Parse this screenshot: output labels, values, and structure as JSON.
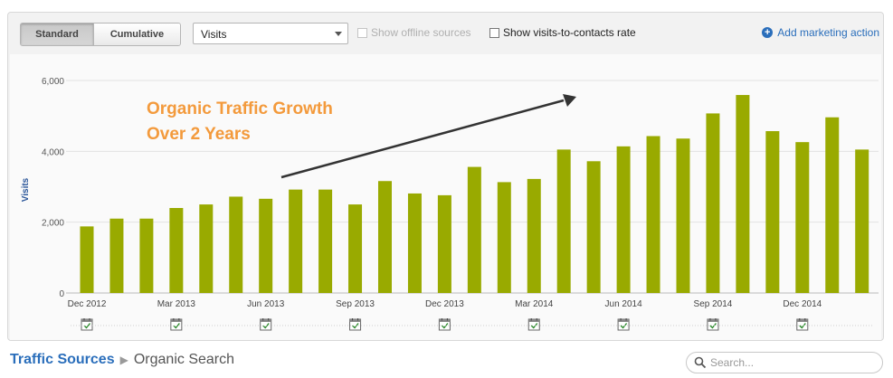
{
  "toolbar": {
    "view_standard": "Standard",
    "view_cumulative": "Cumulative",
    "metric_select": "Visits",
    "offline_sources_label": "Show offline sources",
    "offline_sources_checked": false,
    "visits_contacts_label": "Show visits-to-contacts rate",
    "visits_contacts_checked": false,
    "add_marketing_action": "Add marketing action"
  },
  "annotation": {
    "line1": "Organic Traffic Growth",
    "line2": "Over 2 Years"
  },
  "chart_data": {
    "type": "bar",
    "ylabel": "Visits",
    "ylim": [
      0,
      6000
    ],
    "yticks": [
      "0",
      "2,000",
      "4,000",
      "6,000"
    ],
    "grid": true,
    "bar_color": "#99aa00",
    "categories": [
      "Dec 2012",
      "Jan 2013",
      "Feb 2013",
      "Mar 2013",
      "Apr 2013",
      "May 2013",
      "Jun 2013",
      "Jul 2013",
      "Aug 2013",
      "Sep 2013",
      "Oct 2013",
      "Nov 2013",
      "Dec 2013",
      "Jan 2014",
      "Feb 2014",
      "Mar 2014",
      "Apr 2014",
      "May 2014",
      "Jun 2014",
      "Jul 2014",
      "Aug 2014",
      "Sep 2014",
      "Oct 2014",
      "Nov 2014",
      "Dec 2014",
      "Jan 2015",
      "Feb 2015"
    ],
    "values": [
      1880,
      2100,
      2100,
      2400,
      2500,
      2720,
      2660,
      2920,
      2920,
      2500,
      3160,
      2810,
      2760,
      3560,
      3130,
      3220,
      4050,
      3720,
      4140,
      4430,
      4360,
      5070,
      5590,
      4570,
      4260,
      4960,
      4050
    ],
    "xtick_labels": [
      "Dec 2012",
      "Mar 2013",
      "Jun 2013",
      "Sep 2013",
      "Dec 2013",
      "Mar 2014",
      "Jun 2014",
      "Sep 2014",
      "Dec 2014"
    ]
  },
  "breadcrumb": {
    "parent": "Traffic Sources",
    "current": "Organic Search"
  },
  "search": {
    "placeholder": "Search..."
  },
  "colors": {
    "accent_blue": "#2a6ebb",
    "annotation_orange": "#f39a3c"
  }
}
